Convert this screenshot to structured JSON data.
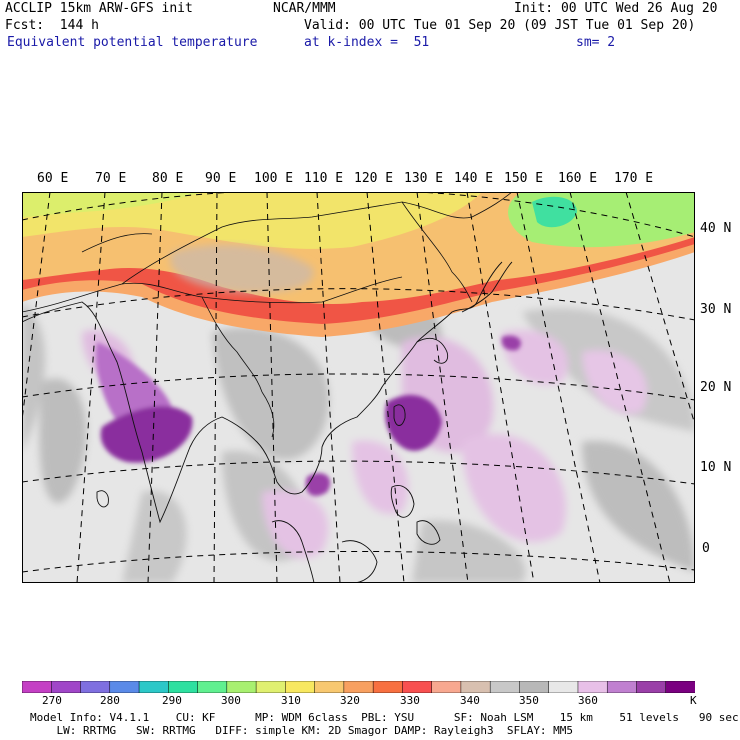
{
  "header": {
    "model": "ACCLIP 15km ARW-GFS init",
    "org": "NCAR/MMM",
    "init": "Init: 00 UTC Wed 26 Aug 20",
    "fcst": "Fcst:  144 h",
    "valid": "Valid: 00 UTC Tue 01 Sep 20 (09 JST Tue 01 Sep 20)",
    "field": "Equivalent potential temperature",
    "level": "at k-index =  51",
    "smooth": "sm= 2"
  },
  "lon_labels": [
    "60 E",
    "70 E",
    "80 E",
    "90 E",
    "100 E",
    "110 E",
    "120 E",
    "130 E",
    "140 E",
    "150 E",
    "160 E",
    "170 E"
  ],
  "lat_labels": [
    "40 N",
    "30 N",
    "20 N",
    "10 N",
    "0"
  ],
  "colorbar": {
    "unit": "K",
    "ticks": [
      "270",
      "280",
      "290",
      "300",
      "310",
      "320",
      "330",
      "340",
      "350",
      "360"
    ],
    "colors": [
      "#c43fc4",
      "#a046c8",
      "#7f6fe0",
      "#5a8ae8",
      "#2cc8c8",
      "#2ee0a0",
      "#60f090",
      "#a8f070",
      "#e0f070",
      "#f8e860",
      "#f8c870",
      "#f8a060",
      "#f87040",
      "#f85050",
      "#f8a890",
      "#d8c0b0",
      "#c8c8c8",
      "#b8b8b8",
      "#e8e8e8",
      "#e8c0e8",
      "#c080d0",
      "#9a3fa8",
      "#7a0080"
    ]
  },
  "footer": {
    "line1": "Model Info: V4.1.1    CU: KF      MP: WDM 6class  PBL: YSU      SF: Noah LSM    15 km    51 levels   90 sec",
    "line2": "    LW: RRTMG   SW: RRTMG   DIFF: simple KM: 2D Smagor DAMP: Rayleigh3  SFLAY: MM5"
  }
}
